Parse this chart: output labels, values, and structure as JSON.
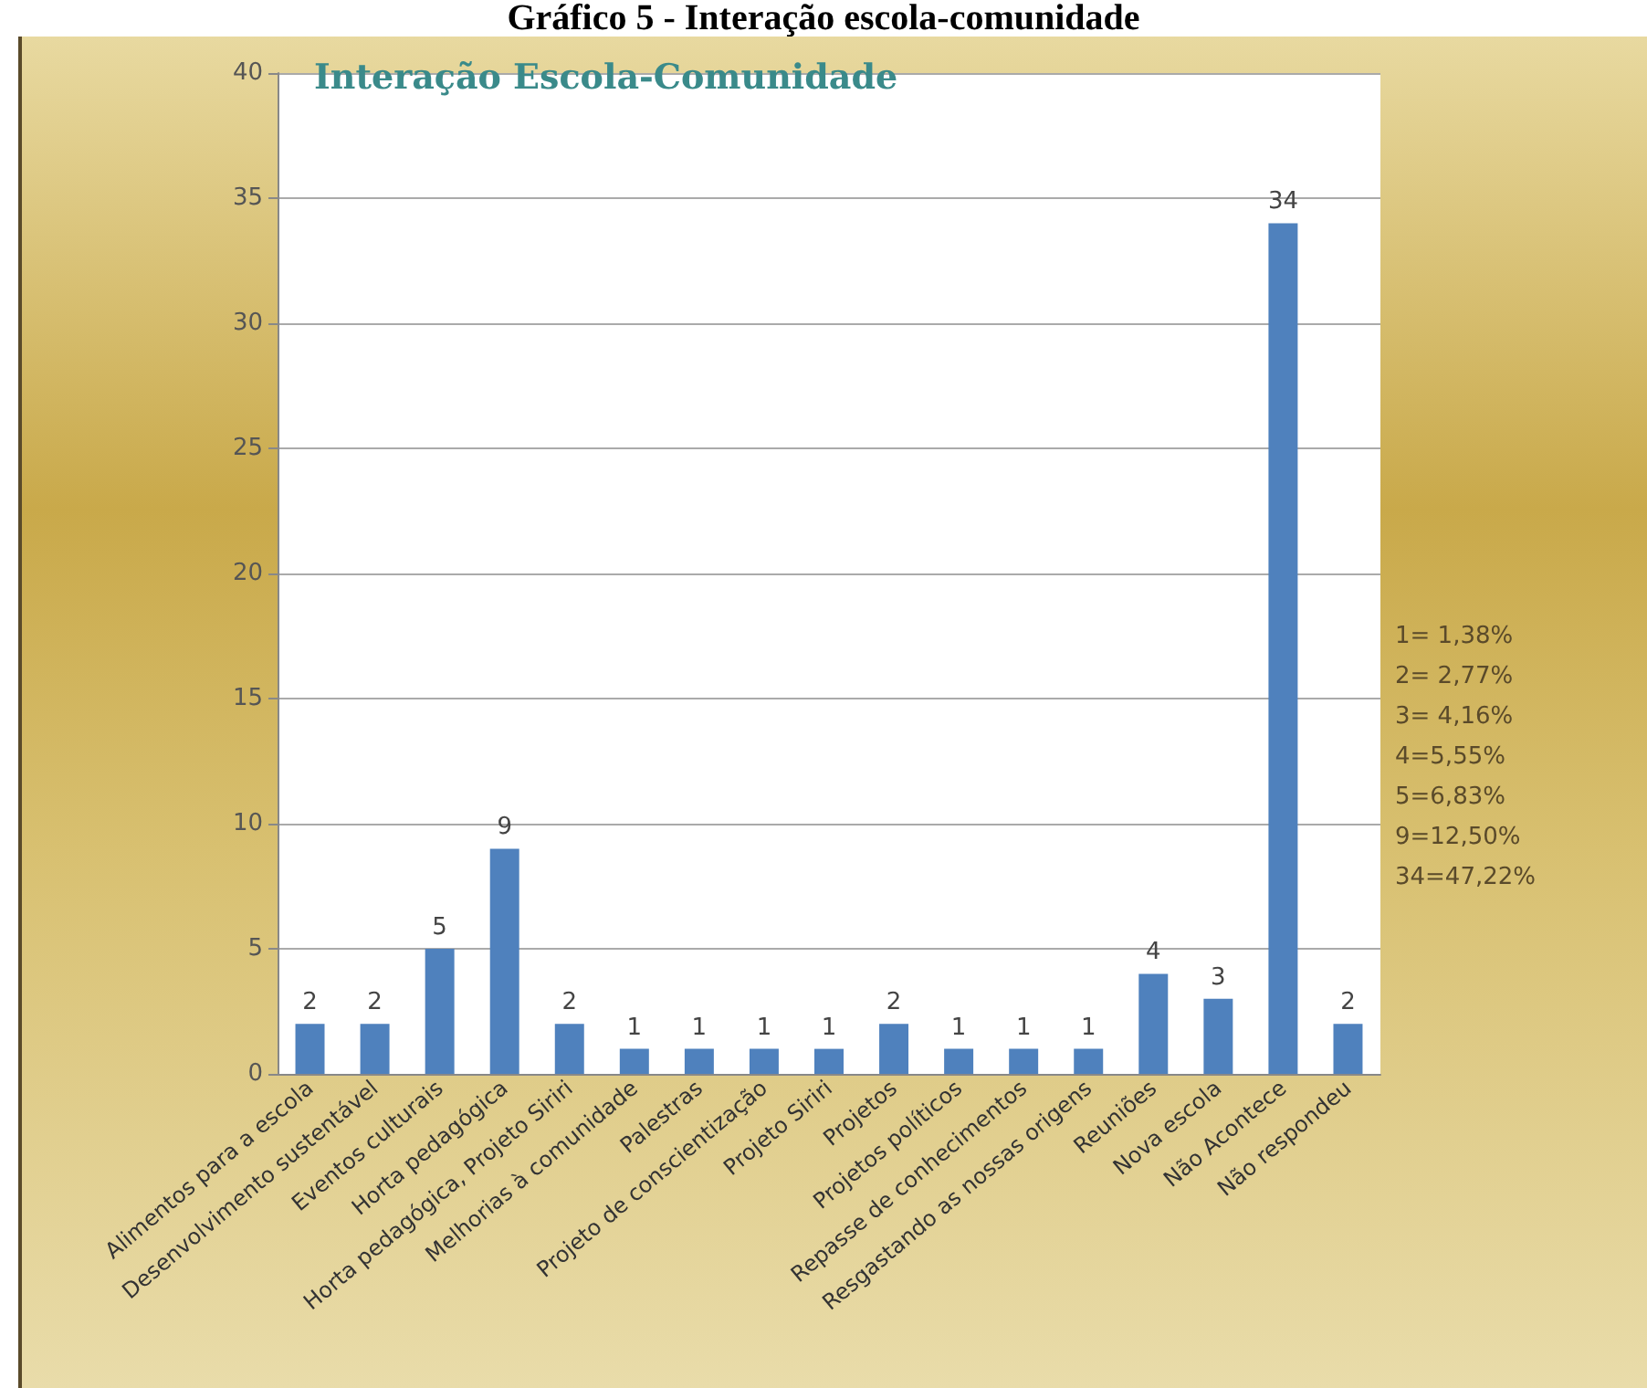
{
  "chart_data": {
    "type": "bar",
    "title": "Gráfico 5 - Interação escola-comunidade",
    "subtitle": "Interação Escola-Comunidade",
    "categories": [
      "Alimentos para a escola",
      "Desenvolvimento sustentável",
      "Eventos culturais",
      "Horta pedagógica",
      "Horta pedagógica, Projeto Siriri",
      "Melhorias à comunidade",
      "Palestras",
      "Projeto de conscientização",
      "Projeto Siriri",
      "Projetos",
      "Projetos políticos",
      "Repasse de conhecimentos",
      "Resgastando as nossas origens",
      "Reuniões",
      "Nova escola",
      "Não Acontece",
      "Não respondeu"
    ],
    "values": [
      2,
      2,
      5,
      9,
      2,
      1,
      1,
      1,
      1,
      2,
      1,
      1,
      1,
      4,
      3,
      34,
      2
    ],
    "color": "#4f81bd",
    "ylim": [
      0,
      40
    ],
    "yticks": [
      0,
      5,
      10,
      15,
      20,
      25,
      30,
      35,
      40
    ],
    "grid": "y",
    "data_labels": true,
    "annotations": [
      "1= 1,38%",
      "2= 2,77%",
      "3= 4,16%",
      "4=5,55%",
      "5=6,83%",
      "9=12,50%",
      "34=47,22%"
    ]
  }
}
